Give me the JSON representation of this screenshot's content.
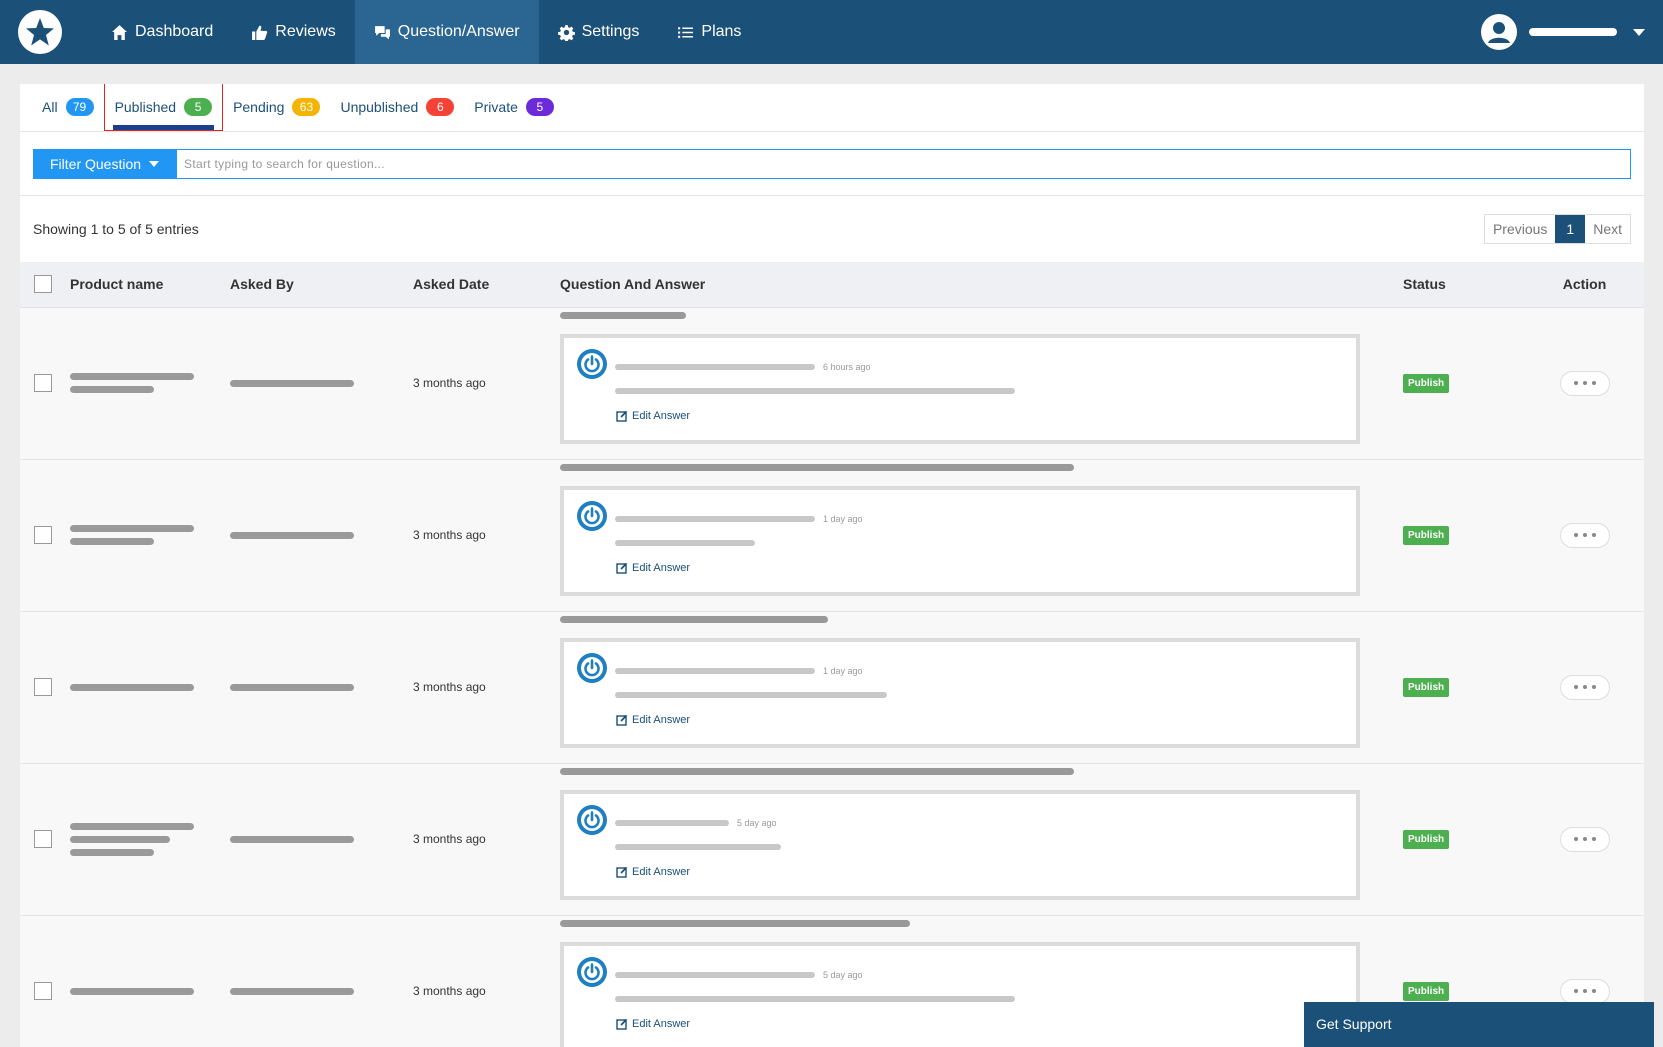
{
  "nav": {
    "items": [
      {
        "label": "Dashboard",
        "icon": "home-icon"
      },
      {
        "label": "Reviews",
        "icon": "thumbs-up-icon"
      },
      {
        "label": "Question/Answer",
        "icon": "chat-bubbles-icon"
      },
      {
        "label": "Settings",
        "icon": "gear-icon"
      },
      {
        "label": "Plans",
        "icon": "list-icon"
      }
    ],
    "active": "Question/Answer"
  },
  "tabs": [
    {
      "label": "All",
      "count": "79",
      "color": "#2196f3"
    },
    {
      "label": "Published",
      "count": "5",
      "color": "#4caf50"
    },
    {
      "label": "Pending",
      "count": "63",
      "color": "#f5b400"
    },
    {
      "label": "Unpublished",
      "count": "6",
      "color": "#f44336"
    },
    {
      "label": "Private",
      "count": "5",
      "color": "#6c2bd9"
    }
  ],
  "filter": {
    "button_label": "Filter Question",
    "placeholder": "Start typing to search for question..."
  },
  "showing": "Showing 1 to 5 of 5 entries",
  "pager": {
    "previous": "Previous",
    "current": "1",
    "next": "Next"
  },
  "columns": {
    "product": "Product name",
    "asked_by": "Asked By",
    "asked_date": "Asked Date",
    "qa": "Question And Answer",
    "status": "Status",
    "action": "Action"
  },
  "rows": [
    {
      "asked_date": "3 months ago",
      "answer_time": "6 hours ago",
      "edit_label": "Edit Answer",
      "status": "Publish"
    },
    {
      "asked_date": "3 months ago",
      "answer_time": "1 day ago",
      "edit_label": "Edit Answer",
      "status": "Publish"
    },
    {
      "asked_date": "3 months ago",
      "answer_time": "1 day ago",
      "edit_label": "Edit Answer",
      "status": "Publish"
    },
    {
      "asked_date": "3 months ago",
      "answer_time": "5 day ago",
      "edit_label": "Edit Answer",
      "status": "Publish"
    },
    {
      "asked_date": "3 months ago",
      "answer_time": "5 day ago",
      "edit_label": "Edit Answer",
      "status": "Publish"
    }
  ],
  "support_label": "Get Support",
  "colors": {
    "nav_bg": "#1b5079",
    "accent": "#2196f3",
    "publish": "#4caf50"
  }
}
